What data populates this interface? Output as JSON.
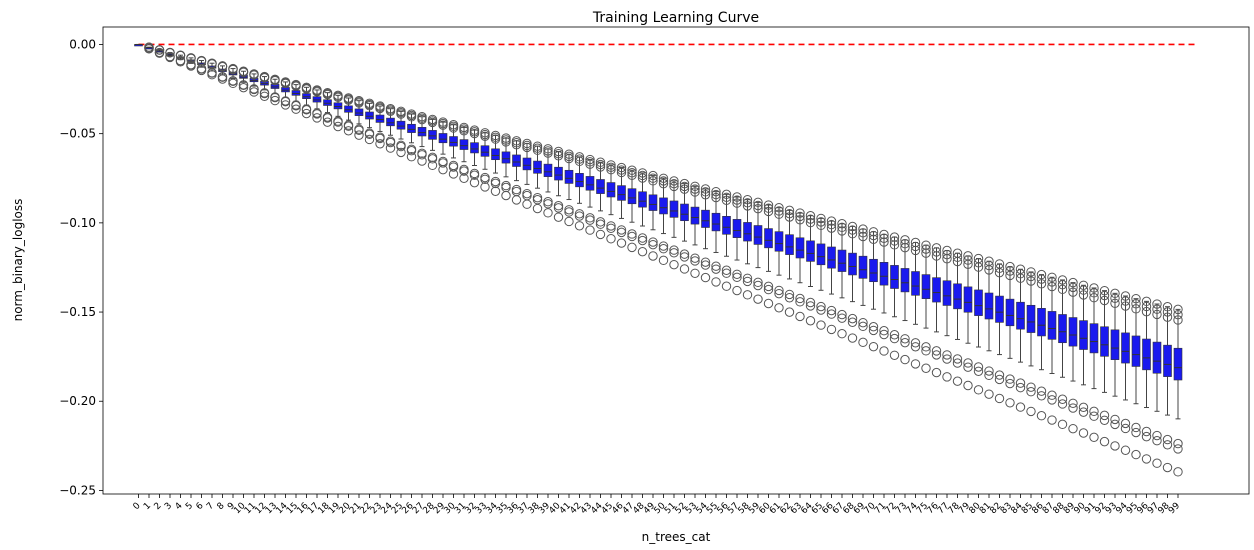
{
  "chart_data": {
    "type": "boxplot",
    "title": "Training Learning Curve",
    "xlabel": "n_trees_cat",
    "ylabel": "norm_binary_logloss",
    "ylim": [
      -0.252,
      0.0098
    ],
    "yticks": [
      0.0,
      -0.05,
      -0.1,
      -0.15,
      -0.2,
      -0.25
    ],
    "ytick_labels": [
      "0.00",
      "−0.05",
      "−0.10",
      "−0.15",
      "−0.20",
      "−0.25"
    ],
    "categories": [
      "0",
      "1",
      "2",
      "3",
      "4",
      "5",
      "6",
      "7",
      "8",
      "9",
      "10",
      "11",
      "12",
      "13",
      "14",
      "15",
      "16",
      "17",
      "18",
      "19",
      "20",
      "21",
      "22",
      "23",
      "24",
      "25",
      "26",
      "27",
      "28",
      "29",
      "30",
      "31",
      "32",
      "33",
      "34",
      "35",
      "36",
      "37",
      "38",
      "39",
      "40",
      "41",
      "42",
      "43",
      "44",
      "45",
      "46",
      "47",
      "48",
      "49",
      "50",
      "51",
      "52",
      "53",
      "54",
      "55",
      "56",
      "57",
      "58",
      "59",
      "60",
      "61",
      "62",
      "63",
      "64",
      "65",
      "66",
      "67",
      "68",
      "69",
      "70",
      "71",
      "72",
      "73",
      "74",
      "75",
      "76",
      "77",
      "78",
      "79",
      "80",
      "81",
      "82",
      "83",
      "84",
      "85",
      "86",
      "87",
      "88",
      "89",
      "90",
      "91",
      "92",
      "93",
      "94",
      "95",
      "96",
      "97",
      "98",
      "99"
    ],
    "xtick_rotation": 45,
    "per_category_approx": {
      "median": "-0.00183 * k",
      "q1": "-0.00190 * k",
      "q3": "-0.00172 * k",
      "whisker_low": "-0.00212 * k",
      "whisker_high": "-0.00150 * k",
      "outliers_high": [
        "-0.00150 * k",
        "-0.00153 * k",
        "-0.00156 * k"
      ],
      "outliers_low": [
        "-0.00226 * k",
        "-0.00229 * k",
        "-0.00242 * k"
      ]
    },
    "reference_line": {
      "y": 0.0,
      "color": "#ff0000",
      "style": "dashed"
    },
    "box_color": "#1a1aee",
    "grid": false,
    "legend": "none"
  }
}
